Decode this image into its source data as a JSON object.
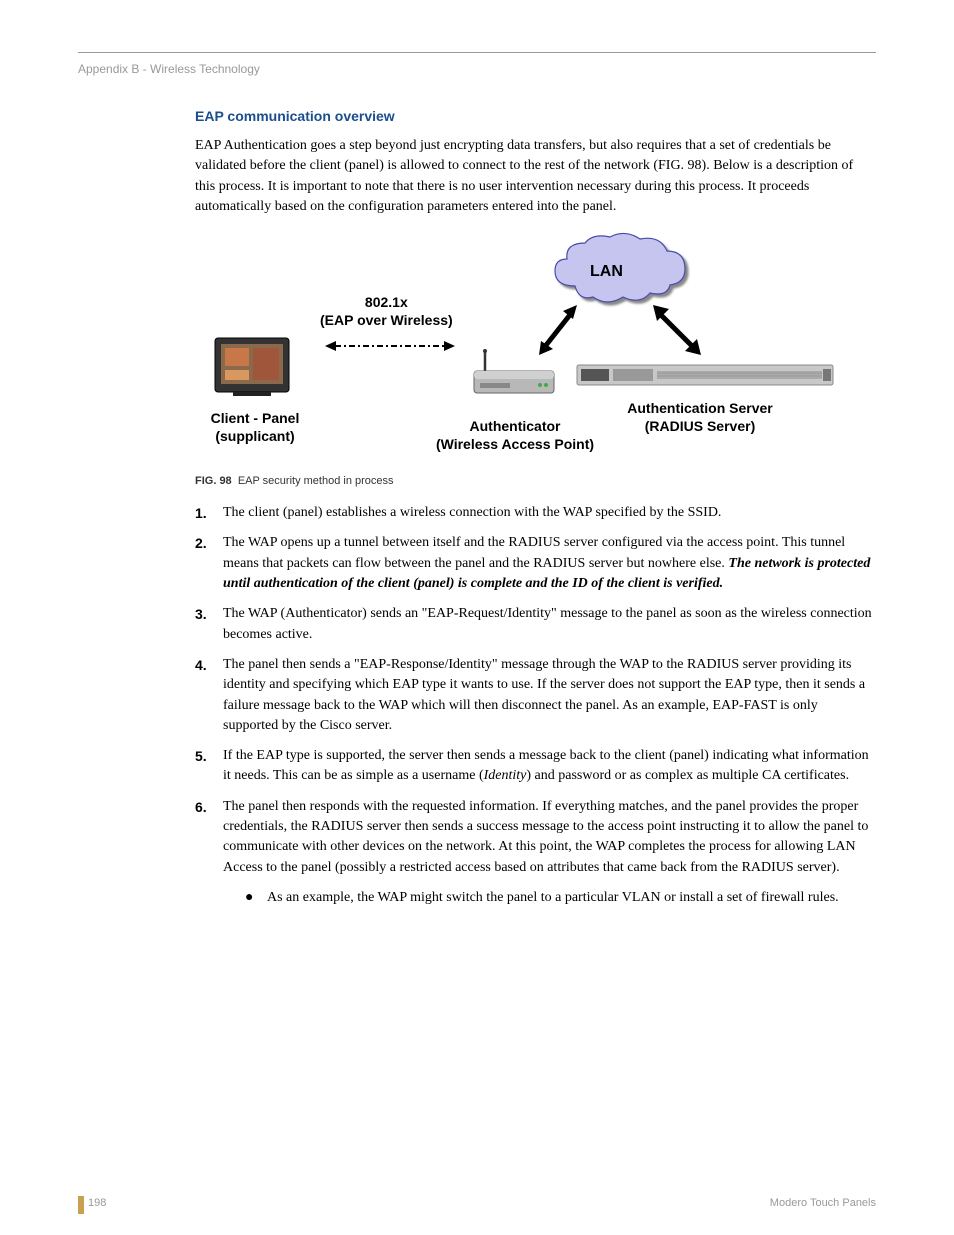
{
  "header": {
    "breadcrumb": "Appendix B - Wireless Technology"
  },
  "heading": "EAP communication overview",
  "intro": "EAP Authentication goes a step beyond just encrypting data transfers, but also requires that a set of credentials be validated before the client (panel) is allowed to connect to the rest of the network (FIG. 98). Below is a description of this process. It is important to note that there is no user intervention necessary during this process. It proceeds automatically based on the configuration parameters entered into the panel.",
  "figure": {
    "cloud_label": "LAN",
    "eap_label_l1": "802.1x",
    "eap_label_l2": "(EAP over Wireless)",
    "panel_label_l1": "Client - Panel",
    "panel_label_l2": "(supplicant)",
    "wap_label_l1": "Authenticator",
    "wap_label_l2": "(Wireless Access Point)",
    "server_label_l1": "Authentication Server",
    "server_label_l2": "(RADIUS Server)",
    "cloud_fill": "#c5c5f0",
    "cloud_stroke": "#4a4aa8",
    "caption_num": "FIG. 98",
    "caption_text": "EAP security method in process"
  },
  "steps": [
    {
      "num": "1.",
      "html": "The client (panel) establishes a wireless connection with the WAP specified by the SSID."
    },
    {
      "num": "2.",
      "html": "The WAP opens up a tunnel between itself and the RADIUS server configured via the access point. This tunnel means that packets can flow between the panel and the RADIUS server but nowhere else. <em class='bolditalic'>The network is protected until authentication of the client (panel) is complete and the ID of the client is verified.</em>"
    },
    {
      "num": "3.",
      "html": "The WAP (Authenticator) sends an \"EAP-Request/Identity\" message to the panel as soon as the wireless connection becomes active."
    },
    {
      "num": "4.",
      "html": "The panel then sends a \"EAP-Response/Identity\" message through the WAP to the RADIUS server providing its identity and specifying which EAP type it wants to use. If the server does not support the EAP type, then it sends a failure message back to the WAP which will then disconnect the panel. As an example, EAP-FAST is only supported by the Cisco server."
    },
    {
      "num": "5.",
      "html": "If the EAP type is supported, the server then sends a message back to the client (panel) indicating what information it needs. This can be as simple as a username (<em class='italic'>Identity</em>) and password or as complex as multiple CA certificates."
    },
    {
      "num": "6.",
      "html": "The panel then responds with the requested information. If everything matches, and the panel provides the proper credentials, the RADIUS server then sends a success message to the access point instructing it to allow the panel to communicate with other devices on the network. At this point, the WAP completes the process for allowing LAN Access to the panel (possibly a restricted access based on attributes that came back from the RADIUS server)."
    }
  ],
  "sub_bullet": "As an example, the WAP might switch the panel to a particular VLAN or install a set of firewall rules.",
  "footer": {
    "page_num": "198",
    "doc_title": "Modero Touch Panels"
  }
}
